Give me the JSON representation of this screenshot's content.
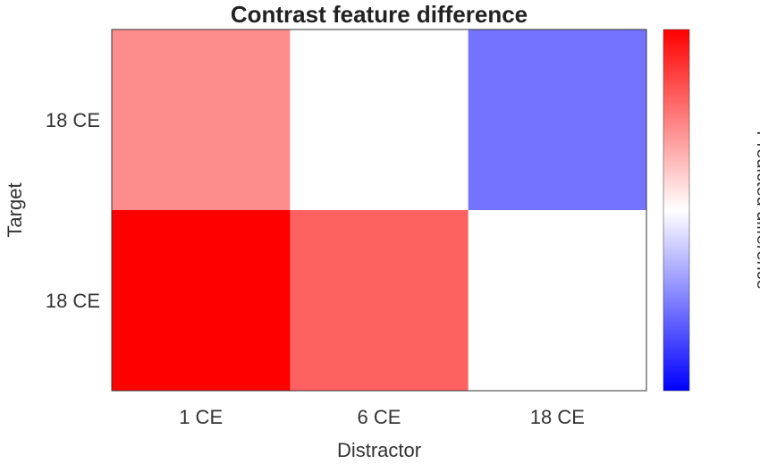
{
  "chart_data": {
    "type": "heatmap",
    "title": "Contrast feature difference",
    "xlabel": "Distractor",
    "ylabel": "Target",
    "x_categories": [
      "1 CE",
      "6 CE",
      "18 CE"
    ],
    "y_categories": [
      "18 CE",
      "18 CE"
    ],
    "values": [
      [
        0.45,
        0.0,
        -0.55
      ],
      [
        1.0,
        0.62,
        0.0
      ]
    ],
    "colorbar": {
      "label": "Predicted difference",
      "range": [
        -1,
        1
      ],
      "colormap": [
        "#0000ff",
        "#ffffff",
        "#ff0000"
      ]
    },
    "grid": false
  }
}
